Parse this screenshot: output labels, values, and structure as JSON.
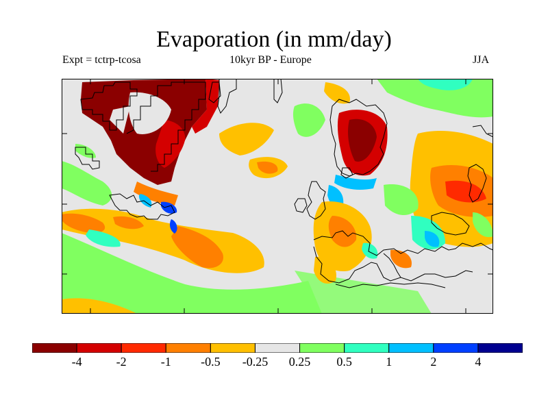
{
  "title": "Evaporation (in mm/day)",
  "subtitle_left": "Expt = tctrp-tcosa",
  "subtitle_center": "10kyr BP - Europe",
  "subtitle_right": "JJA",
  "colors": {
    "background": "#e6e6e6",
    "coastline": "#000000"
  },
  "colorbar": {
    "colors": [
      "#8b0000",
      "#d40000",
      "#ff2a00",
      "#ff8000",
      "#ffc000",
      "#e6e6e6",
      "#80ff60",
      "#30ffc0",
      "#00c0ff",
      "#0040ff",
      "#000090"
    ],
    "labels": [
      "-4",
      "-2",
      "-1",
      "-0.5",
      "-0.25",
      "0.25",
      "0.5",
      "1",
      "2",
      "4"
    ]
  }
}
